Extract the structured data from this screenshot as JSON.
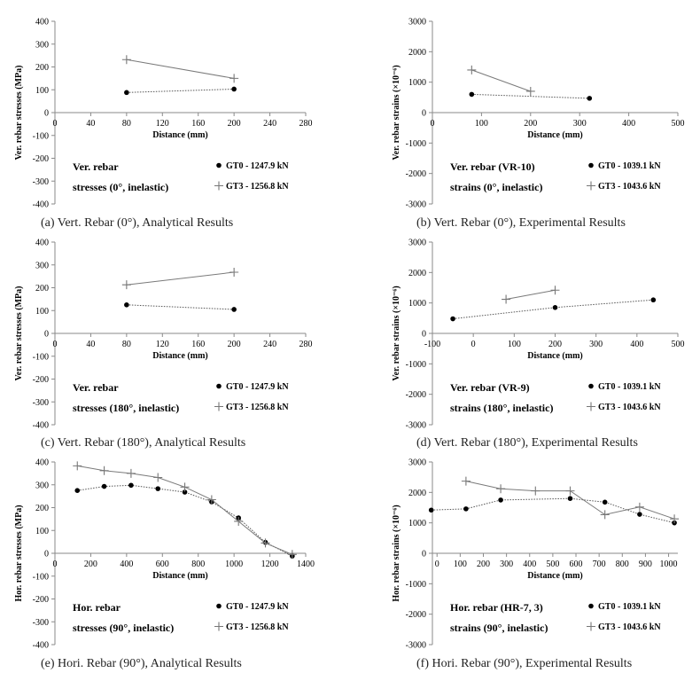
{
  "chart_data": [
    {
      "type": "line",
      "caption": "(a) Vert. Rebar (0°), Analytical Results",
      "xlabel": "Distance (mm)",
      "ylabel": "Ver. rebar stresses (MPa)",
      "xlim": [
        0,
        280
      ],
      "xticks": [
        0,
        40,
        80,
        120,
        160,
        200,
        240,
        280
      ],
      "ylim": [
        -400,
        400
      ],
      "yticks": [
        -400,
        -300,
        -200,
        -100,
        0,
        100,
        200,
        300,
        400
      ],
      "note": [
        "Ver. rebar",
        "stresses (0°, inelastic)"
      ],
      "series": [
        {
          "name": "GT0 - 1247.9 kN",
          "marker": "dot",
          "line": "dotted",
          "x": [
            80,
            200
          ],
          "y": [
            88,
            103
          ]
        },
        {
          "name": "GT3 - 1256.8 kN",
          "marker": "plus",
          "line": "solid",
          "x": [
            80,
            200
          ],
          "y": [
            232,
            150
          ]
        }
      ]
    },
    {
      "type": "line",
      "caption": "(b) Vert. Rebar (0°), Experimental Results",
      "xlabel": "Distance (mm)",
      "ylabel": "Ver. rebar strains (×10⁻⁶)",
      "xlim": [
        0,
        500
      ],
      "xticks": [
        0,
        100,
        200,
        300,
        400,
        500
      ],
      "ylim": [
        -3000,
        3000
      ],
      "yticks": [
        -3000,
        -2000,
        -1000,
        0,
        1000,
        2000,
        3000
      ],
      "note": [
        "Ver. rebar (VR-10)",
        "strains (0°, inelastic)"
      ],
      "series": [
        {
          "name": "GT0 - 1039.1 kN",
          "marker": "dot",
          "line": "dotted",
          "x": [
            80,
            320
          ],
          "y": [
            600,
            470
          ]
        },
        {
          "name": "GT3 - 1043.6 kN",
          "marker": "plus",
          "line": "solid",
          "x": [
            80,
            200
          ],
          "y": [
            1400,
            700
          ]
        }
      ]
    },
    {
      "type": "line",
      "caption": "(c) Vert. Rebar (180°), Analytical Results",
      "xlabel": "Distance (mm)",
      "ylabel": "Ver. rebar stresses (MPa)",
      "xlim": [
        0,
        280
      ],
      "xticks": [
        0,
        40,
        80,
        120,
        160,
        200,
        240,
        280
      ],
      "ylim": [
        -400,
        400
      ],
      "yticks": [
        -400,
        -300,
        -200,
        -100,
        0,
        100,
        200,
        300,
        400
      ],
      "note": [
        "Ver. rebar",
        "stresses (180°, inelastic)"
      ],
      "series": [
        {
          "name": "GT0 - 1247.9 kN",
          "marker": "dot",
          "line": "dotted",
          "x": [
            80,
            200
          ],
          "y": [
            125,
            105
          ]
        },
        {
          "name": "GT3 - 1256.8 kN",
          "marker": "plus",
          "line": "solid",
          "x": [
            80,
            200
          ],
          "y": [
            213,
            268
          ]
        }
      ]
    },
    {
      "type": "line",
      "caption": "(d) Vert. Rebar (180°), Experimental Results",
      "xlabel": "Distance (mm)",
      "ylabel": "Ver. rebar strains (×10⁻⁶)",
      "xlim": [
        -100,
        500
      ],
      "xticks": [
        -100,
        0,
        100,
        200,
        300,
        400,
        500
      ],
      "ylim": [
        -3000,
        3000
      ],
      "yticks": [
        -3000,
        -2000,
        -1000,
        0,
        1000,
        2000,
        3000
      ],
      "note": [
        "Ver. rebar (VR-9)",
        "strains (180°, inelastic)"
      ],
      "series": [
        {
          "name": "GT0 - 1039.1 kN",
          "marker": "dot",
          "line": "dotted",
          "x": [
            -50,
            200,
            440
          ],
          "y": [
            480,
            850,
            1100
          ]
        },
        {
          "name": "GT3 - 1043.6 kN",
          "marker": "plus",
          "line": "solid",
          "x": [
            80,
            200
          ],
          "y": [
            1120,
            1420
          ]
        }
      ]
    },
    {
      "type": "line",
      "caption": "(e) Hori. Rebar (90°), Analytical Results",
      "xlabel": "Distance (mm)",
      "ylabel": "Hor. rebar stresses (MPa)",
      "xlim": [
        0,
        1400
      ],
      "xticks": [
        0,
        200,
        400,
        600,
        800,
        1000,
        1200,
        1400
      ],
      "ylim": [
        -400,
        400
      ],
      "yticks": [
        -400,
        -300,
        -200,
        -100,
        0,
        100,
        200,
        300,
        400
      ],
      "note": [
        "Hor. rebar",
        "stresses (90°, inelastic)"
      ],
      "series": [
        {
          "name": "GT0 - 1247.9 kN",
          "marker": "dot",
          "line": "dotted",
          "x": [
            125,
            275,
            425,
            575,
            725,
            875,
            1025,
            1175,
            1325
          ],
          "y": [
            275,
            293,
            298,
            283,
            268,
            225,
            155,
            48,
            -12
          ]
        },
        {
          "name": "GT3 - 1256.8 kN",
          "marker": "plus",
          "line": "solid",
          "x": [
            125,
            275,
            425,
            575,
            725,
            875,
            1025,
            1175,
            1325
          ],
          "y": [
            383,
            362,
            350,
            332,
            290,
            235,
            140,
            45,
            -5
          ]
        }
      ]
    },
    {
      "type": "line",
      "caption": "(f) Hori. Rebar (90°), Experimental Results",
      "xlabel": "Distance (mm)",
      "ylabel": "Hor. rebar strains (×10⁻⁶)",
      "xlim": [
        -20,
        1040
      ],
      "xticks": [
        0,
        100,
        200,
        300,
        400,
        500,
        600,
        700,
        800,
        900,
        1000
      ],
      "ylim": [
        -3000,
        3000
      ],
      "yticks": [
        -3000,
        -2000,
        -1000,
        0,
        1000,
        2000,
        3000
      ],
      "note": [
        "Hor. rebar (HR-7, 3)",
        "strains (90°, inelastic)"
      ],
      "series": [
        {
          "name": "GT0 - 1039.1 kN",
          "marker": "dot",
          "line": "dotted",
          "x": [
            -25,
            125,
            275,
            575,
            725,
            875,
            1025
          ],
          "y": [
            1420,
            1460,
            1750,
            1800,
            1680,
            1280,
            1000
          ]
        },
        {
          "name": "GT3 - 1043.6 kN",
          "marker": "plus",
          "line": "solid",
          "x": [
            125,
            275,
            425,
            575,
            725,
            875,
            1025
          ],
          "y": [
            2370,
            2120,
            2050,
            2050,
            1270,
            1520,
            1130
          ]
        }
      ]
    }
  ]
}
